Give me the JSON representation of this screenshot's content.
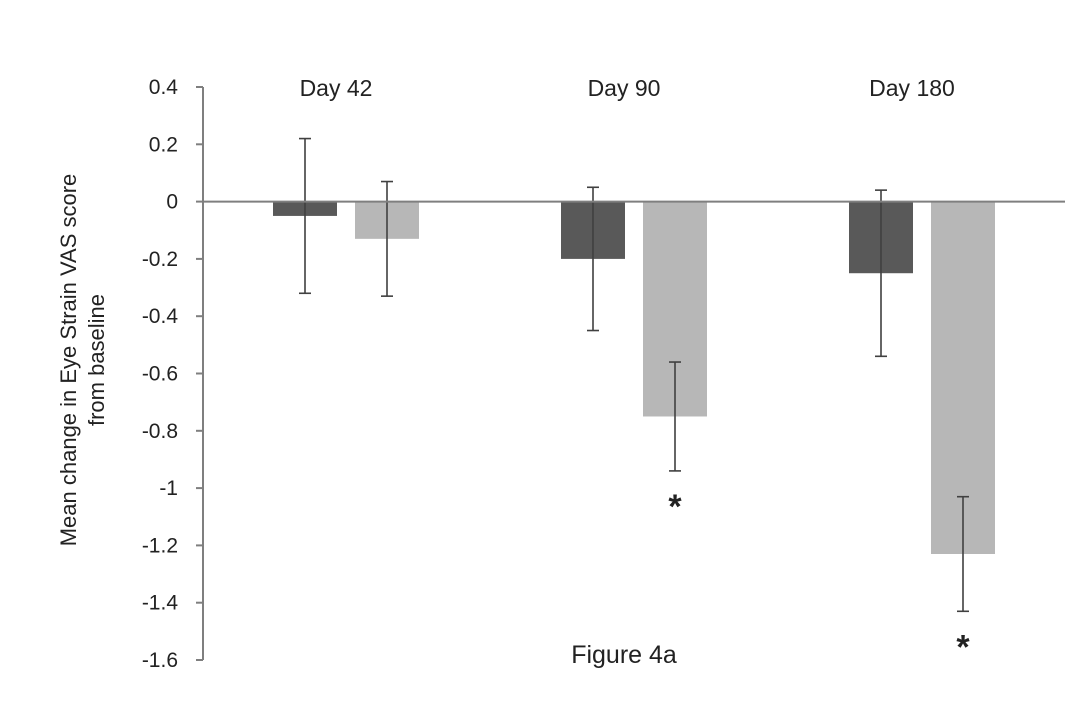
{
  "chart_data": {
    "type": "bar",
    "title": "",
    "caption": "Figure 4a",
    "xlabel": "",
    "ylabel_lines": [
      "Mean change in Eye Strain VAS score",
      "from baseline"
    ],
    "ylim": [
      -1.6,
      0.4
    ],
    "y_ticks": [
      0.4,
      0.2,
      0,
      -0.2,
      -0.4,
      -0.6,
      -0.8,
      -1,
      -1.2,
      -1.4,
      -1.6
    ],
    "y_tick_labels": [
      "0.4",
      "0.2",
      "0",
      "-0.2",
      "-0.4",
      "-0.6",
      "-0.8",
      "-1",
      "-1.2",
      "-1.4",
      "-1.6"
    ],
    "categories": [
      "Day 42",
      "Day 90",
      "Day 180"
    ],
    "grid": false,
    "legend": "none",
    "series": [
      {
        "color": "#595959",
        "values": [
          -0.05,
          -0.2,
          -0.25
        ],
        "error_low": [
          -0.32,
          -0.45,
          -0.54
        ],
        "error_high": [
          0.22,
          0.05,
          0.04
        ],
        "significance": [
          "",
          "",
          ""
        ]
      },
      {
        "color": "#b7b7b7",
        "values": [
          -0.13,
          -0.75,
          -1.23
        ],
        "error_low": [
          -0.33,
          -0.94,
          -1.43
        ],
        "error_high": [
          0.07,
          -0.56,
          -1.03
        ],
        "significance": [
          "",
          "*",
          "*"
        ]
      }
    ]
  }
}
